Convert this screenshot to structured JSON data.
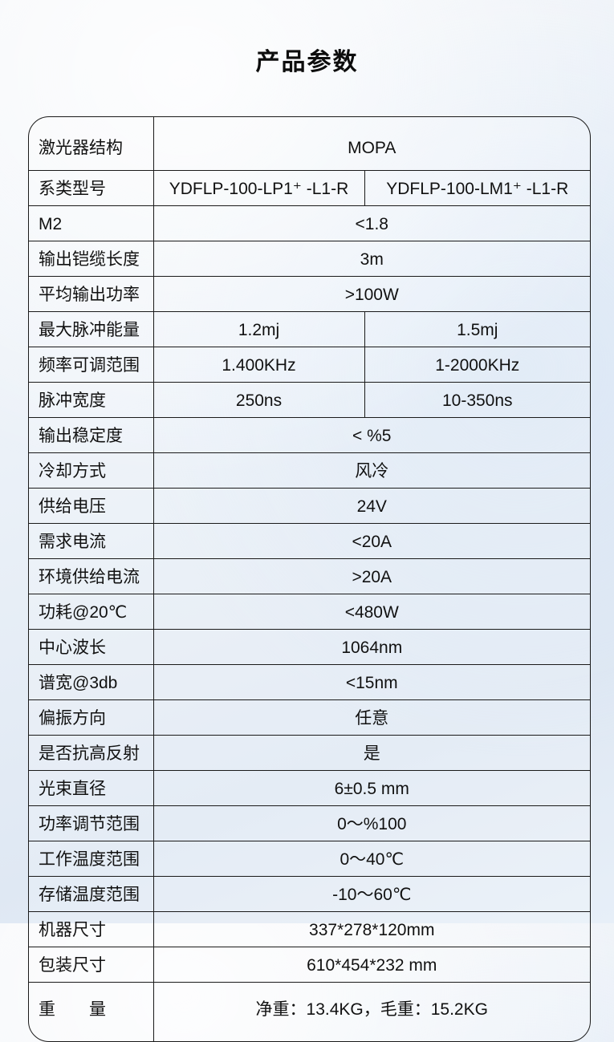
{
  "page": {
    "title": "产品参数"
  },
  "colors": {
    "border": "#1a1a1a",
    "text": "#111111",
    "background_top": "#f4f6f9",
    "background_bottom": "#dfe8f3"
  },
  "table": {
    "rows": [
      {
        "label": "激光器结构",
        "values": [
          "MOPA"
        ]
      },
      {
        "label": "系类型号",
        "values": [
          "YDFLP-100-LP1⁺ -L1-R",
          "YDFLP-100-LM1⁺ -L1-R"
        ]
      },
      {
        "label": "M2",
        "values": [
          "<1.8"
        ]
      },
      {
        "label": "输出铠缆长度",
        "values": [
          "3m"
        ]
      },
      {
        "label": "平均输出功率",
        "values": [
          ">100W"
        ]
      },
      {
        "label": "最大脉冲能量",
        "values": [
          "1.2mj",
          "1.5mj"
        ]
      },
      {
        "label": "频率可调范围",
        "values": [
          "1.400KHz",
          "1-2000KHz"
        ]
      },
      {
        "label": "脉冲宽度",
        "values": [
          "250ns",
          "10-350ns"
        ]
      },
      {
        "label": "输出稳定度",
        "values": [
          "< %5"
        ]
      },
      {
        "label": "冷却方式",
        "values": [
          "风冷"
        ]
      },
      {
        "label": "供给电压",
        "values": [
          "24V"
        ]
      },
      {
        "label": "需求电流",
        "values": [
          "<20A"
        ]
      },
      {
        "label": "环境供给电流",
        "values": [
          ">20A"
        ]
      },
      {
        "label": "功耗@20℃",
        "values": [
          "<480W"
        ]
      },
      {
        "label": "中心波长",
        "values": [
          "1064nm"
        ]
      },
      {
        "label": "谱宽@3db",
        "values": [
          "<15nm"
        ]
      },
      {
        "label": "偏振方向",
        "values": [
          "任意"
        ]
      },
      {
        "label": "是否抗高反射",
        "values": [
          "是"
        ]
      },
      {
        "label": "光束直径",
        "values": [
          "6±0.5 mm"
        ]
      },
      {
        "label": "功率调节范围",
        "values": [
          "0～%100"
        ]
      },
      {
        "label": "工作温度范围",
        "values": [
          "0～40℃"
        ]
      },
      {
        "label": "存储温度范围",
        "values": [
          "-10～60℃"
        ]
      },
      {
        "label": "机器尺寸",
        "values": [
          "337*278*120mm"
        ]
      },
      {
        "label": "包装尺寸",
        "values": [
          "610*454*232 mm"
        ]
      },
      {
        "label": "重　　量",
        "values": [
          "净重：13.4KG，毛重：15.2KG"
        ]
      }
    ]
  }
}
